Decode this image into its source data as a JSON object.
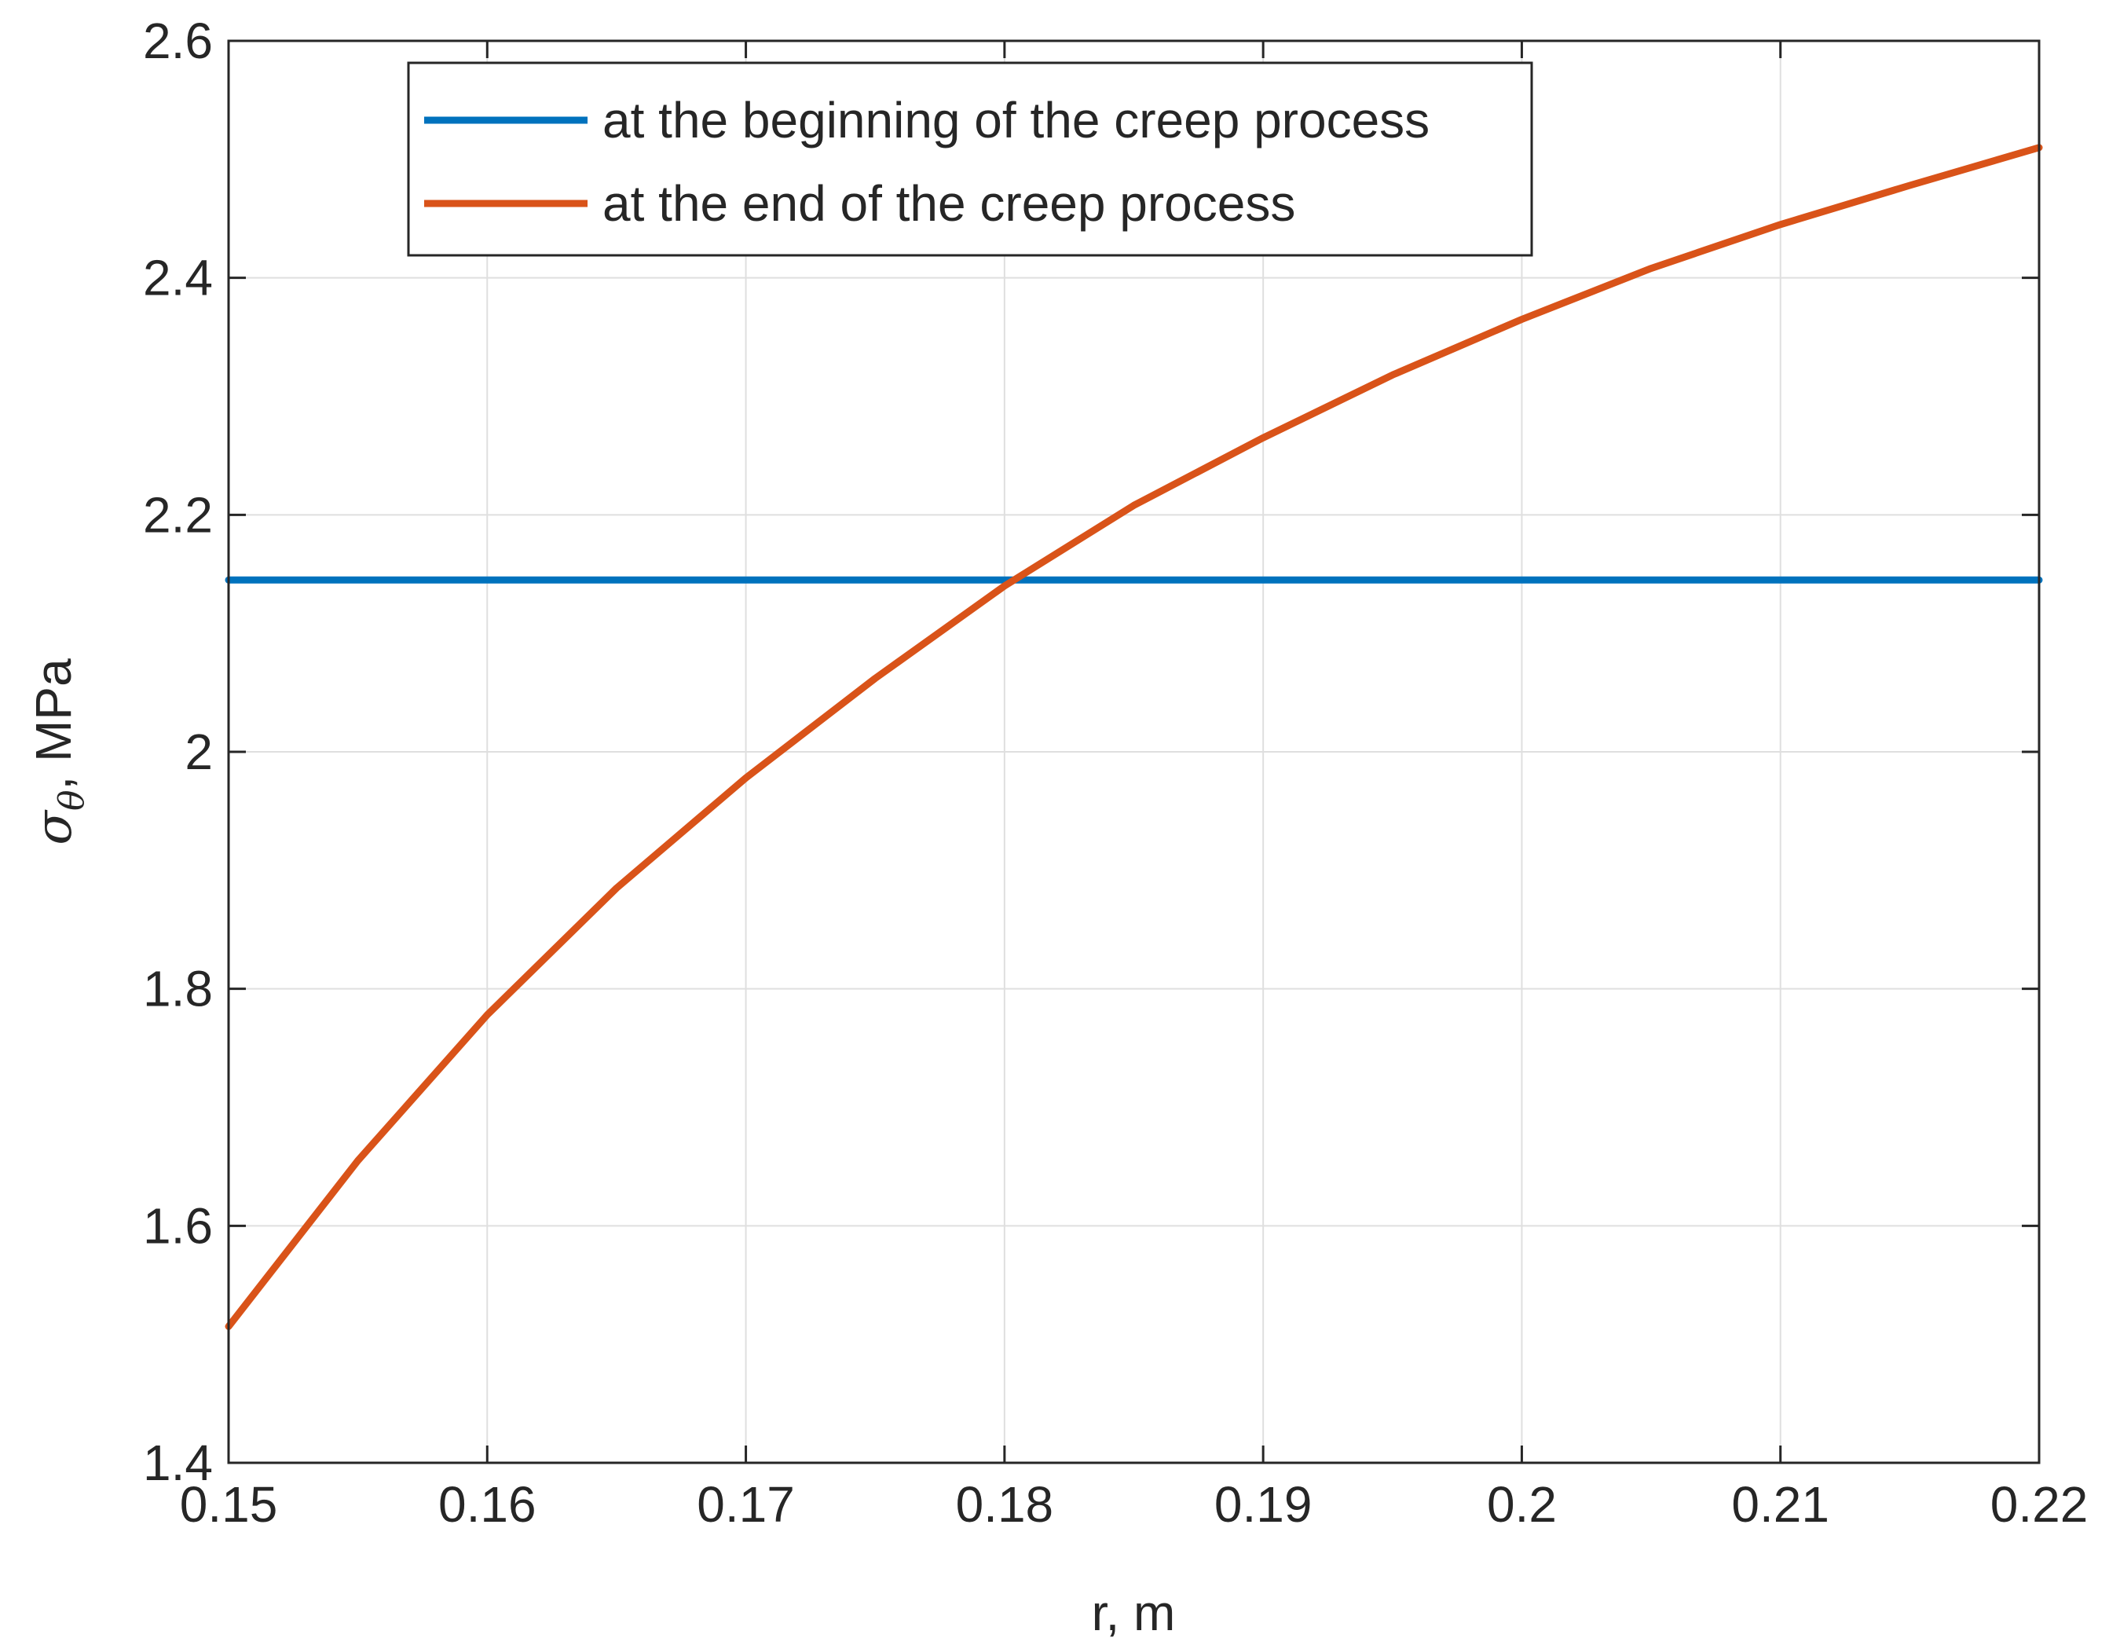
{
  "chart_data": {
    "type": "line",
    "title": "",
    "xlabel": "r, m",
    "ylabel": {
      "symbol": "σ",
      "subscript": "θ",
      "rest": ", MPa"
    },
    "xlim": [
      0.15,
      0.22
    ],
    "ylim": [
      1.4,
      2.6
    ],
    "xticks": [
      0.15,
      0.16,
      0.17,
      0.18,
      0.19,
      0.2,
      0.21,
      0.22
    ],
    "xtick_labels": [
      "0.15",
      "0.16",
      "0.17",
      "0.18",
      "0.19",
      "0.2",
      "0.21",
      "0.22"
    ],
    "yticks": [
      1.4,
      1.6,
      1.8,
      2.0,
      2.2,
      2.4,
      2.6
    ],
    "ytick_labels": [
      "1.4",
      "1.6",
      "1.8",
      "2",
      "2.2",
      "2.4",
      "2.6"
    ],
    "grid": true,
    "legend_position": "top",
    "series": [
      {
        "name": "at the beginning of the creep process",
        "color": "#0072BD",
        "x": [
          0.15,
          0.16,
          0.17,
          0.18,
          0.19,
          0.2,
          0.21,
          0.22
        ],
        "y": [
          2.145,
          2.145,
          2.145,
          2.145,
          2.145,
          2.145,
          2.145,
          2.145
        ]
      },
      {
        "name": "at the end of the creep process",
        "color": "#D95319",
        "x": [
          0.15,
          0.155,
          0.16,
          0.165,
          0.17,
          0.175,
          0.18,
          0.185,
          0.19,
          0.195,
          0.2,
          0.205,
          0.21,
          0.215,
          0.22
        ],
        "y": [
          1.515,
          1.655,
          1.778,
          1.885,
          1.978,
          2.062,
          2.14,
          2.208,
          2.265,
          2.318,
          2.365,
          2.408,
          2.445,
          2.478,
          2.51
        ]
      }
    ]
  }
}
